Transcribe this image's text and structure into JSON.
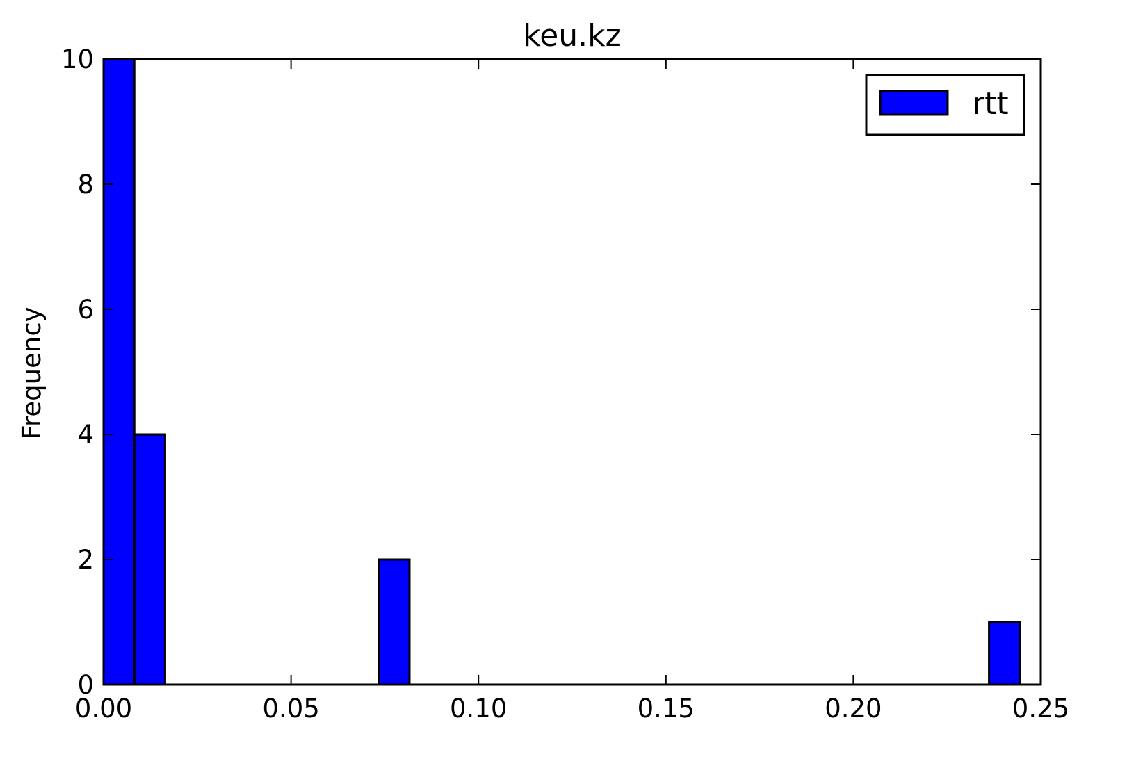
{
  "chart_data": {
    "type": "bar",
    "title": "keu.kz",
    "xlabel": "",
    "ylabel": "Frequency",
    "xlim": [
      0.0,
      0.25
    ],
    "ylim": [
      0,
      10
    ],
    "x_ticks": [
      "0.00",
      "0.05",
      "0.10",
      "0.15",
      "0.20",
      "0.25"
    ],
    "y_ticks": [
      "0",
      "2",
      "4",
      "6",
      "8",
      "10"
    ],
    "bins": [
      {
        "x0": 0.0,
        "x1": 0.0082,
        "count": 10
      },
      {
        "x0": 0.0082,
        "x1": 0.0164,
        "count": 4
      },
      {
        "x0": 0.0734,
        "x1": 0.0816,
        "count": 2
      },
      {
        "x0": 0.2362,
        "x1": 0.2444,
        "count": 1
      }
    ],
    "series": [
      {
        "name": "rtt",
        "color": "#0000ff"
      }
    ],
    "legend": {
      "placement": "top-right"
    },
    "grid": false
  }
}
